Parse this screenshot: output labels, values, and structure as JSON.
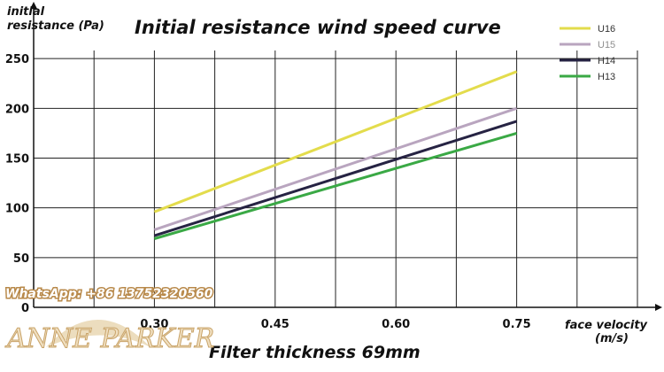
{
  "watermark": {
    "contact": "WhatsApp: +86 13752320560",
    "logo": "ANNE PARKER"
  },
  "chart_data": {
    "type": "line",
    "title": "Initial resistance wind speed curve",
    "subtitle": "Filter thickness 69mm",
    "xlabel_line1": "face velocity",
    "xlabel_line2": "(m/s)",
    "ylabel_line1": "initial",
    "ylabel_line2": "resistance (Pa)",
    "xlim": [
      0.15,
      0.9
    ],
    "ylim": [
      0,
      300
    ],
    "x_ticks": [
      0.3,
      0.45,
      0.6,
      0.75
    ],
    "x_tick_labels": [
      "0.30",
      "0.45",
      "0.60",
      "0.75"
    ],
    "y_ticks": [
      0,
      50,
      100,
      150,
      200,
      250
    ],
    "y_tick_labels": [
      "0",
      "50",
      "100",
      "150",
      "200",
      "250"
    ],
    "grid": true,
    "legend_position": "top-right",
    "series": [
      {
        "name": "U16",
        "color": "#e3dc4c",
        "x": [
          0.3,
          0.75
        ],
        "y": [
          96,
          237
        ]
      },
      {
        "name": "U15",
        "color": "#b9a5bf",
        "x": [
          0.3,
          0.75
        ],
        "y": [
          78,
          200
        ]
      },
      {
        "name": "H14",
        "color": "#262343",
        "x": [
          0.3,
          0.75
        ],
        "y": [
          72,
          187
        ]
      },
      {
        "name": "H13",
        "color": "#3aa945",
        "x": [
          0.3,
          0.75
        ],
        "y": [
          69,
          175
        ]
      }
    ]
  }
}
